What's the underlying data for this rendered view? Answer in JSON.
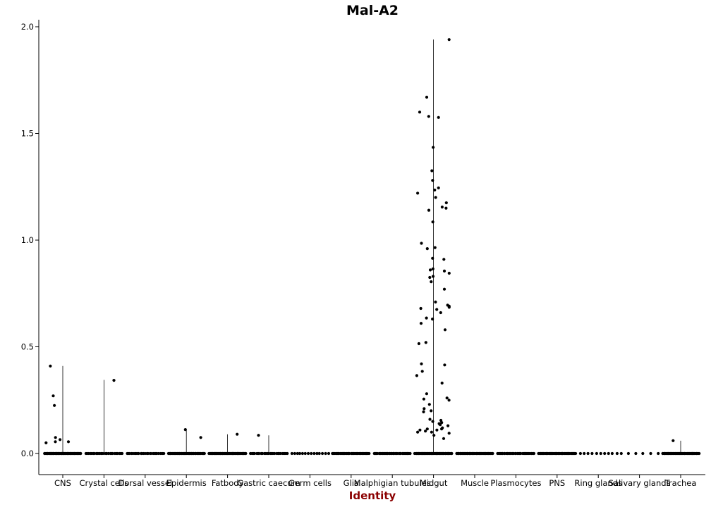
{
  "chart_data": {
    "type": "scatter",
    "subtype": "violin-jitter",
    "title": "Mal-A2",
    "xlabel": "Identity",
    "ylabel": "",
    "ylim": [
      -0.1,
      2.03
    ],
    "yticks": [
      0.0,
      0.5,
      1.0,
      1.5,
      2.0
    ],
    "ytick_labels": [
      "0.0",
      "0.5",
      "1.0",
      "1.5",
      "2.0"
    ],
    "grid": false,
    "legend": "none",
    "colors": {
      "points": "#000000",
      "axis": "#000000",
      "xlabel": "#8b0000"
    },
    "categories": [
      "CNS",
      "Crystal cells",
      "Dorsal vessel",
      "Epidermis",
      "Fatbody",
      "Gastric caecum",
      "Germ cells",
      "Glia",
      "Malphigian tubules",
      "Midgut",
      "Muscle",
      "Plasmocytes",
      "PNS",
      "Ring glands",
      "Salivary glands",
      "Trachea"
    ],
    "series": [
      {
        "category": "CNS",
        "max": 0.41,
        "zeros": 60,
        "values": [
          0.225,
          0.41,
          0.055,
          0.05,
          0.075,
          0.055,
          0.065,
          0.27
        ]
      },
      {
        "category": "Crystal cells",
        "max": 0.345,
        "zeros": 25,
        "values": [
          0.343
        ]
      },
      {
        "category": "Dorsal vessel",
        "max": 0.0,
        "zeros": 25,
        "values": []
      },
      {
        "category": "Epidermis",
        "max": 0.112,
        "zeros": 50,
        "values": [
          0.112,
          0.075
        ]
      },
      {
        "category": "Fatbody",
        "max": 0.09,
        "zeros": 60,
        "values": [
          0.09
        ]
      },
      {
        "category": "Gastric caecum",
        "max": 0.085,
        "zeros": 25,
        "values": [
          0.085
        ]
      },
      {
        "category": "Germ cells",
        "max": 0.0,
        "zeros": 14,
        "values": []
      },
      {
        "category": "Glia",
        "max": 0.0,
        "zeros": 40,
        "values": []
      },
      {
        "category": "Malphigian tubules",
        "max": 0.0,
        "zeros": 40,
        "values": []
      },
      {
        "category": "Midgut",
        "max": 1.94,
        "zeros": 55,
        "values": [
          1.94,
          1.67,
          1.6,
          1.58,
          1.575,
          1.435,
          1.325,
          1.28,
          1.245,
          1.235,
          1.22,
          1.2,
          1.175,
          1.155,
          1.15,
          1.14,
          1.085,
          0.985,
          0.965,
          0.96,
          0.915,
          0.91,
          0.865,
          0.86,
          0.855,
          0.845,
          0.83,
          0.825,
          0.805,
          0.77,
          0.71,
          0.695,
          0.69,
          0.685,
          0.68,
          0.675,
          0.66,
          0.635,
          0.63,
          0.61,
          0.58,
          0.52,
          0.515,
          0.42,
          0.415,
          0.385,
          0.365,
          0.33,
          0.28,
          0.26,
          0.255,
          0.25,
          0.23,
          0.21,
          0.2,
          0.195,
          0.16,
          0.155,
          0.15,
          0.145,
          0.14,
          0.135,
          0.13,
          0.12,
          0.115,
          0.115,
          0.11,
          0.11,
          0.105,
          0.1,
          0.1,
          0.095,
          0.085,
          0.07
        ]
      },
      {
        "category": "Muscle",
        "max": 0.0,
        "zeros": 50,
        "values": []
      },
      {
        "category": "Plasmocytes",
        "max": 0.0,
        "zeros": 35,
        "values": []
      },
      {
        "category": "PNS",
        "max": 0.0,
        "zeros": 45,
        "values": []
      },
      {
        "category": "Ring glands",
        "max": 0.0,
        "zeros": 10,
        "values": []
      },
      {
        "category": "Salivary glands",
        "max": 0.0,
        "zeros": 6,
        "values": []
      },
      {
        "category": "Trachea",
        "max": 0.06,
        "zeros": 50,
        "values": [
          0.06
        ]
      }
    ]
  }
}
